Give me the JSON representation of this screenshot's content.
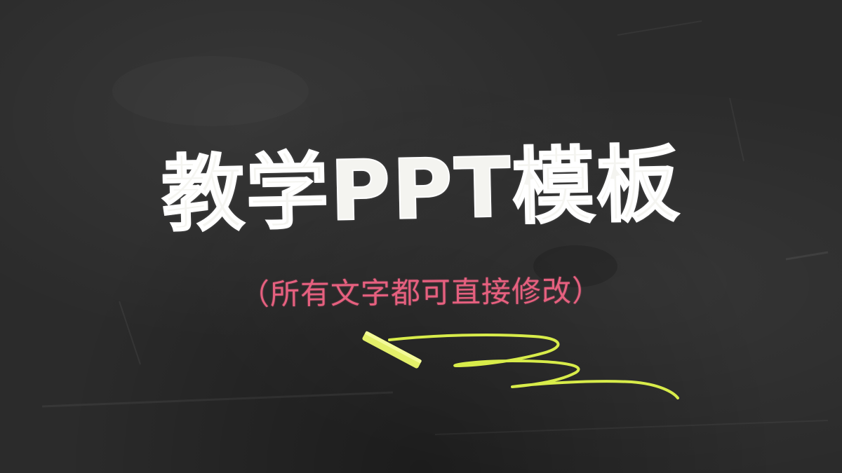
{
  "slide": {
    "title": "教学PPT模板",
    "subtitle": "（所有文字都可直接修改）"
  },
  "colors": {
    "board": "#2b2b2b",
    "title_chalk": "#f4f4f0",
    "subtitle_chalk": "#e6607f",
    "chalk_stick": "#e4f06a",
    "scribble": "#d8ec4a"
  },
  "icons": {
    "chalk": "chalk-stick-icon",
    "scribble": "chalk-scribble"
  }
}
